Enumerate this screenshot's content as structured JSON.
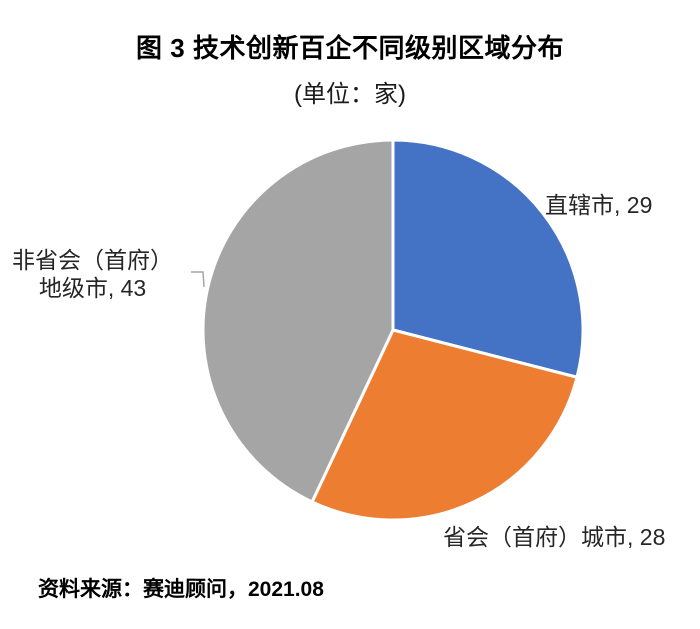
{
  "title": "图 3  技术创新百企不同级别区域分布",
  "subtitle": "(单位：家)",
  "source": "资料来源：赛迪顾问，2021.08",
  "chart_data": {
    "type": "pie",
    "title": "图 3 技术创新百企不同级别区域分布",
    "unit": "家",
    "total": 100,
    "direction": "clockwise",
    "start_angle_deg_from_top": 0,
    "labels_position": "outside",
    "slices": [
      {
        "key": "zhixiashi",
        "name": "直辖市",
        "value": 29,
        "color": "#4472C4"
      },
      {
        "key": "shenghui-shoufu-chengshi",
        "name": "省会（首府）城市",
        "value": 28,
        "color": "#ED7D31"
      },
      {
        "key": "fei-shenghui-dijishi",
        "name": "非省会（首府）地级市",
        "value": 43,
        "color": "#A5A5A5"
      }
    ]
  },
  "labels": {
    "zhixiashi": "直辖市, 29",
    "shenghui": "省会（首府）城市, 28",
    "feishenghui_line1": "非省会（首府）",
    "feishenghui_line2": "地级市, 43"
  },
  "colors": {
    "blue": "#4472C4",
    "orange": "#ED7D31",
    "gray": "#A5A5A5",
    "leader_line": "#A6A6A6",
    "label_text": "#262626",
    "slice_border": "#FFFFFF"
  }
}
